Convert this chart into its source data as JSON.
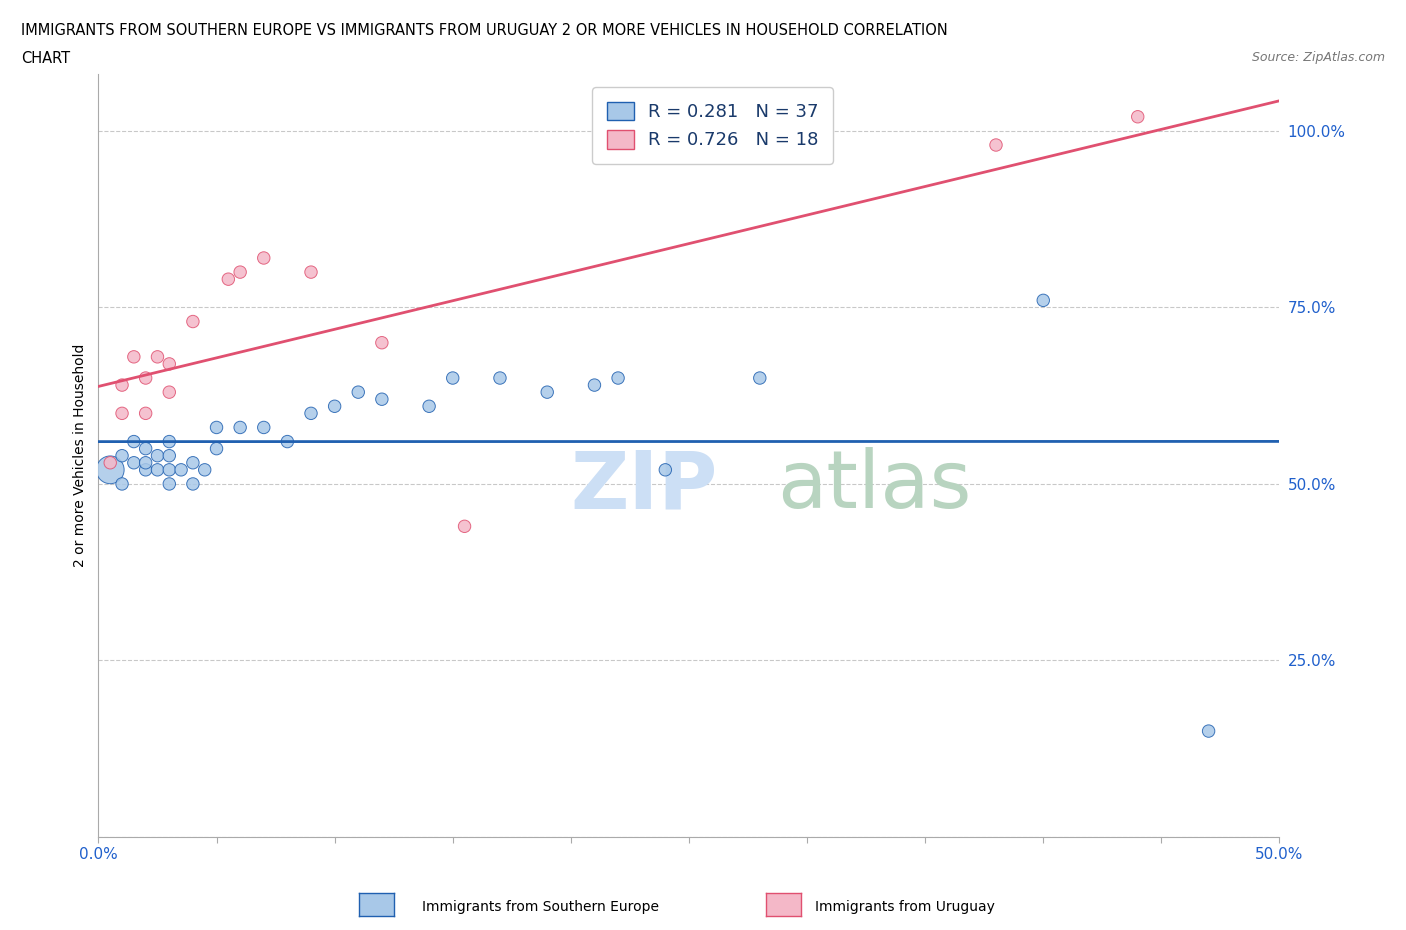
{
  "title_line1": "IMMIGRANTS FROM SOUTHERN EUROPE VS IMMIGRANTS FROM URUGUAY 2 OR MORE VEHICLES IN HOUSEHOLD CORRELATION",
  "title_line2": "CHART",
  "source_text": "Source: ZipAtlas.com",
  "ylabel": "2 or more Vehicles in Household",
  "xlim": [
    0.0,
    0.5
  ],
  "ylim": [
    0.0,
    1.08
  ],
  "blue_R": 0.281,
  "blue_N": 37,
  "pink_R": 0.726,
  "pink_N": 18,
  "blue_color": "#a8c8e8",
  "pink_color": "#f4b8c8",
  "blue_line_color": "#2060b0",
  "pink_line_color": "#e05070",
  "legend_color": "#1a3a6b",
  "legend_N_color": "#cc0000",
  "blue_x": [
    0.005,
    0.01,
    0.01,
    0.015,
    0.015,
    0.02,
    0.02,
    0.02,
    0.025,
    0.025,
    0.03,
    0.03,
    0.03,
    0.03,
    0.035,
    0.04,
    0.04,
    0.045,
    0.05,
    0.05,
    0.06,
    0.07,
    0.08,
    0.09,
    0.1,
    0.11,
    0.12,
    0.14,
    0.15,
    0.17,
    0.19,
    0.21,
    0.22,
    0.24,
    0.28,
    0.4,
    0.47
  ],
  "blue_y": [
    0.52,
    0.5,
    0.54,
    0.53,
    0.56,
    0.52,
    0.53,
    0.55,
    0.52,
    0.54,
    0.5,
    0.52,
    0.54,
    0.56,
    0.52,
    0.5,
    0.53,
    0.52,
    0.55,
    0.58,
    0.58,
    0.58,
    0.56,
    0.6,
    0.61,
    0.63,
    0.62,
    0.61,
    0.65,
    0.65,
    0.63,
    0.64,
    0.65,
    0.52,
    0.65,
    0.76,
    0.15
  ],
  "blue_sizes_raw": [
    400,
    80,
    80,
    80,
    80,
    80,
    80,
    80,
    80,
    80,
    80,
    80,
    80,
    80,
    80,
    80,
    80,
    80,
    80,
    80,
    80,
    80,
    80,
    80,
    80,
    80,
    80,
    80,
    80,
    80,
    80,
    80,
    80,
    80,
    80,
    80,
    80
  ],
  "pink_x": [
    0.005,
    0.01,
    0.01,
    0.015,
    0.02,
    0.02,
    0.025,
    0.03,
    0.03,
    0.04,
    0.055,
    0.06,
    0.07,
    0.09,
    0.12,
    0.155,
    0.38,
    0.44
  ],
  "pink_y": [
    0.53,
    0.6,
    0.64,
    0.68,
    0.6,
    0.65,
    0.68,
    0.63,
    0.67,
    0.73,
    0.79,
    0.8,
    0.82,
    0.8,
    0.7,
    0.44,
    0.98,
    1.02
  ],
  "pink_sizes_raw": [
    80,
    80,
    80,
    80,
    80,
    80,
    80,
    80,
    80,
    80,
    80,
    80,
    80,
    80,
    80,
    80,
    80,
    80
  ],
  "grid_color": "#bbbbbb",
  "background_color": "#ffffff",
  "tick_color": "#2060cc",
  "watermark_zip_color": "#ccdff5",
  "watermark_atlas_color": "#b8d4c0"
}
